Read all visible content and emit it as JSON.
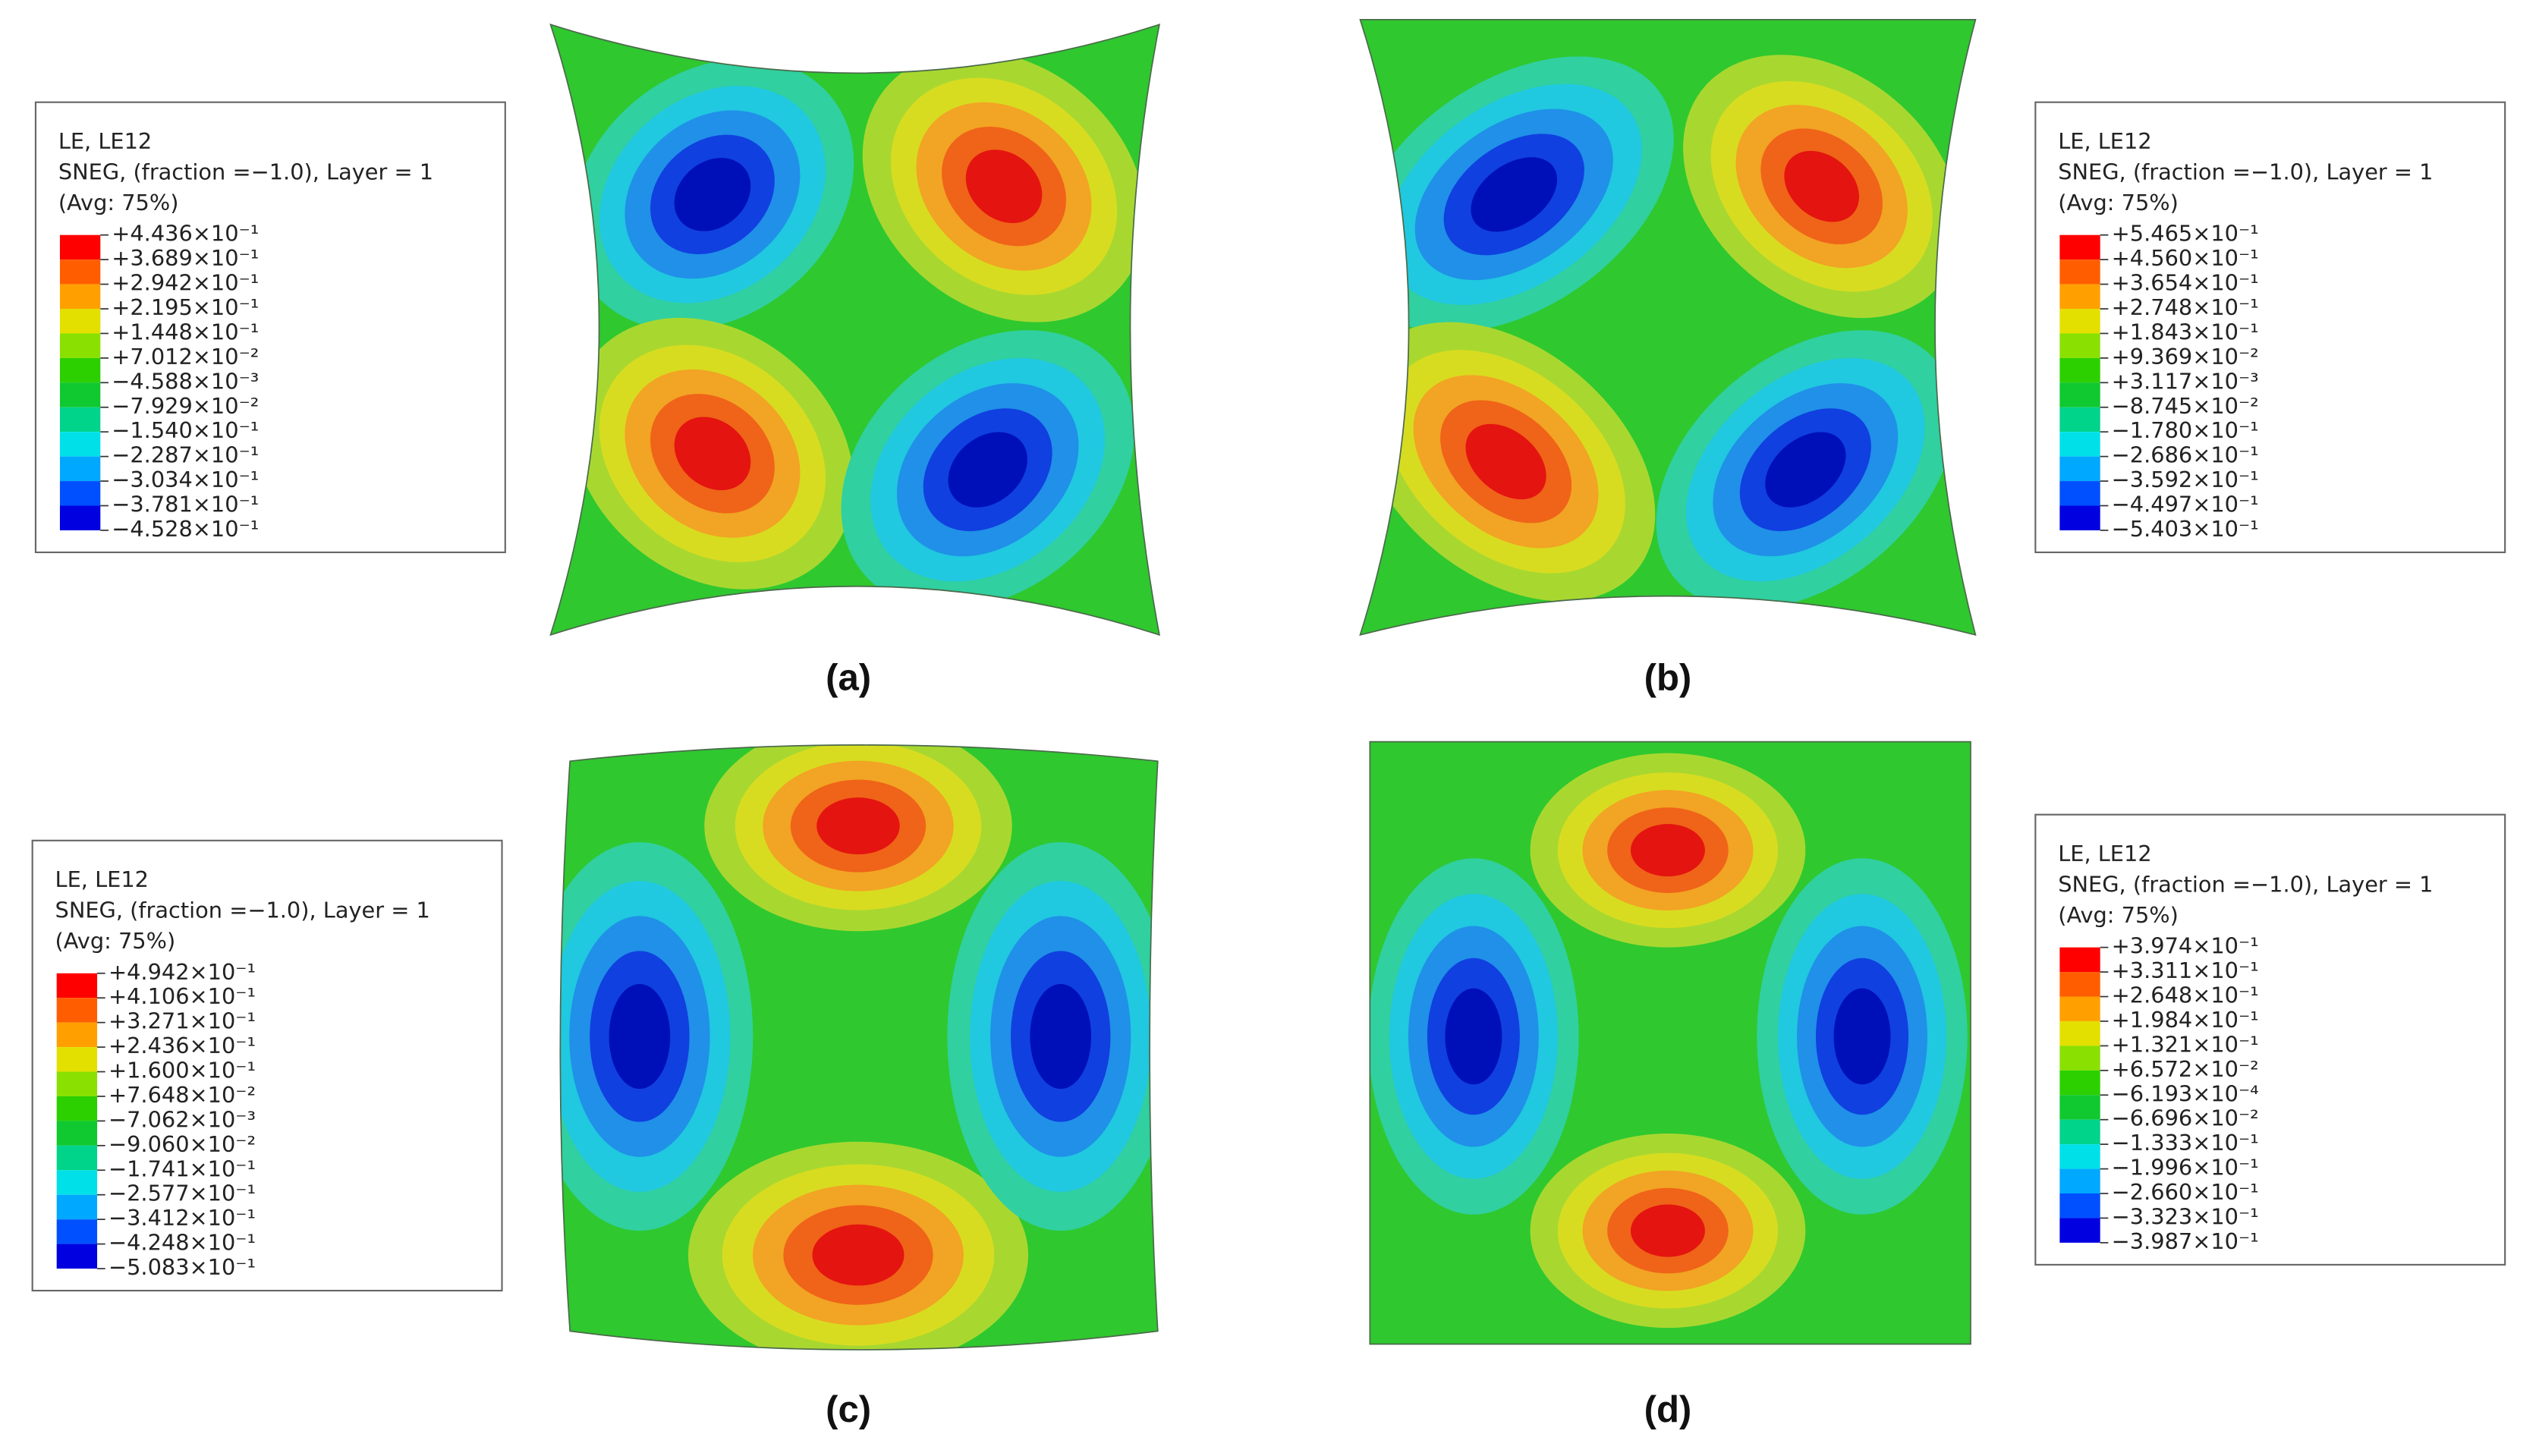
{
  "panels": [
    {
      "caption": "(a)",
      "legend": {
        "title": [
          "LE, LE12",
          "SNEG, (fraction =−1.0), Layer = 1",
          "(Avg: 75%)"
        ],
        "levels": [
          "+4.436×10⁻¹",
          "+3.689×10⁻¹",
          "+2.942×10⁻¹",
          "+2.195×10⁻¹",
          "+1.448×10⁻¹",
          "+7.012×10⁻²",
          "−4.588×10⁻³",
          "−7.929×10⁻²",
          "−1.540×10⁻¹",
          "−2.287×10⁻¹",
          "−3.034×10⁻¹",
          "−3.781×10⁻¹",
          "−4.528×10⁻¹"
        ]
      }
    },
    {
      "caption": "(b)",
      "legend": {
        "title": [
          "LE, LE12",
          "SNEG, (fraction =−1.0), Layer = 1",
          "(Avg: 75%)"
        ],
        "levels": [
          "+5.465×10⁻¹",
          "+4.560×10⁻¹",
          "+3.654×10⁻¹",
          "+2.748×10⁻¹",
          "+1.843×10⁻¹",
          "+9.369×10⁻²",
          "+3.117×10⁻³",
          "−8.745×10⁻²",
          "−1.780×10⁻¹",
          "−2.686×10⁻¹",
          "−3.592×10⁻¹",
          "−4.497×10⁻¹",
          "−5.403×10⁻¹"
        ]
      }
    },
    {
      "caption": "(c)",
      "legend": {
        "title": [
          "LE, LE12",
          "SNEG, (fraction =−1.0), Layer = 1",
          "(Avg: 75%)"
        ],
        "levels": [
          "+4.942×10⁻¹",
          "+4.106×10⁻¹",
          "+3.271×10⁻¹",
          "+2.436×10⁻¹",
          "+1.600×10⁻¹",
          "+7.648×10⁻²",
          "−7.062×10⁻³",
          "−9.060×10⁻²",
          "−1.741×10⁻¹",
          "−2.577×10⁻¹",
          "−3.412×10⁻¹",
          "−4.248×10⁻¹",
          "−5.083×10⁻¹"
        ]
      }
    },
    {
      "caption": "(d)",
      "legend": {
        "title": [
          "LE, LE12",
          "SNEG, (fraction =−1.0), Layer = 1",
          "(Avg: 75%)"
        ],
        "levels": [
          "+3.974×10⁻¹",
          "+3.311×10⁻¹",
          "+2.648×10⁻¹",
          "+1.984×10⁻¹",
          "+1.321×10⁻¹",
          "+6.572×10⁻²",
          "−6.193×10⁻⁴",
          "−6.696×10⁻²",
          "−1.333×10⁻¹",
          "−1.996×10⁻¹",
          "−2.660×10⁻¹",
          "−3.323×10⁻¹",
          "−3.987×10⁻¹"
        ]
      }
    }
  ]
}
